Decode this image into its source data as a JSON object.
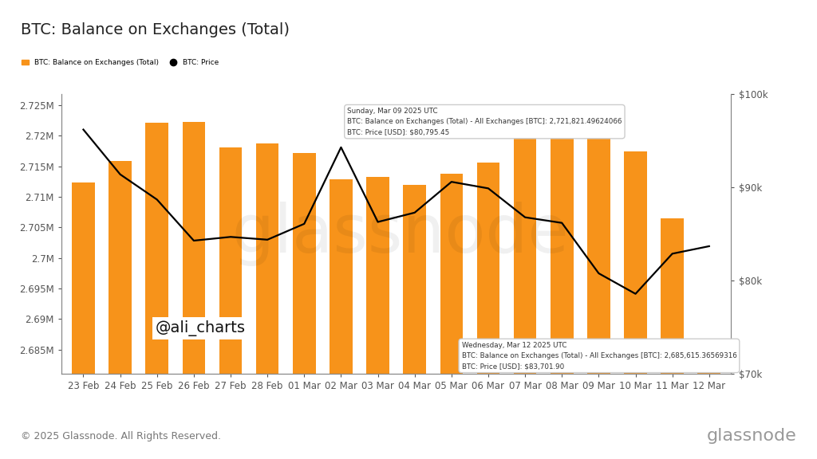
{
  "chart_data": {
    "type": "bar",
    "title": "BTC: Balance on Exchanges (Total)",
    "categories": [
      "23 Feb",
      "24 Feb",
      "25 Feb",
      "26 Feb",
      "27 Feb",
      "28 Feb",
      "01 Mar",
      "02 Mar",
      "03 Mar",
      "04 Mar",
      "05 Mar",
      "06 Mar",
      "07 Mar",
      "08 Mar",
      "09 Mar",
      "10 Mar",
      "11 Mar",
      "12 Mar"
    ],
    "series": [
      {
        "name": "BTC: Balance on Exchanges (Total)",
        "type": "bar",
        "color": "#f7931a",
        "values": [
          2712300,
          2715800,
          2722100,
          2722300,
          2718100,
          2718700,
          2717100,
          2712900,
          2713200,
          2712000,
          2713800,
          2715600,
          2720500,
          2721900,
          2721821.49624066,
          2717400,
          2706500,
          2685615.36569316
        ]
      },
      {
        "name": "BTC: Price",
        "type": "line",
        "color": "#000000",
        "axis": "y2",
        "values": [
          96200,
          91400,
          88700,
          84300,
          84700,
          84400,
          86100,
          94300,
          86300,
          87300,
          90600,
          89900,
          86800,
          86200,
          80795.45,
          78600,
          82900,
          83701.9
        ]
      }
    ],
    "ylim": [
      2681000,
      2726800
    ],
    "yticks": [
      {
        "value": 2685000,
        "label": "2.685M"
      },
      {
        "value": 2690000,
        "label": "2.69M"
      },
      {
        "value": 2695000,
        "label": "2.695M"
      },
      {
        "value": 2700000,
        "label": "2.7M"
      },
      {
        "value": 2705000,
        "label": "2.705M"
      },
      {
        "value": 2710000,
        "label": "2.71M"
      },
      {
        "value": 2715000,
        "label": "2.715M"
      },
      {
        "value": 2720000,
        "label": "2.72M"
      },
      {
        "value": 2725000,
        "label": "2.725M"
      }
    ],
    "y2lim": [
      70000,
      100000
    ],
    "y2ticks": [
      {
        "value": 70000,
        "label": "$70k"
      },
      {
        "value": 80000,
        "label": "$80k"
      },
      {
        "value": 90000,
        "label": "$90k"
      },
      {
        "value": 100000,
        "label": "$100k"
      }
    ],
    "grid": false,
    "legend": "upper left",
    "annotations": [
      [
        "Sunday, Mar 09 2025 UTC",
        "BTC: Balance on Exchanges (Total) - All Exchanges [BTC]: 2,721,821.49624066",
        "BTC: Price [USD]: $80,795.45"
      ],
      [
        "Wednesday, Mar 12 2025 UTC",
        "BTC: Balance on Exchanges (Total) - All Exchanges [BTC]: 2,685,615.36569316",
        "BTC: Price [USD]: $83,701.90"
      ],
      [
        "@ali_charts"
      ]
    ],
    "footer": "© 2025 Glassnode. All Rights Reserved.",
    "watermark": "glassnode"
  }
}
